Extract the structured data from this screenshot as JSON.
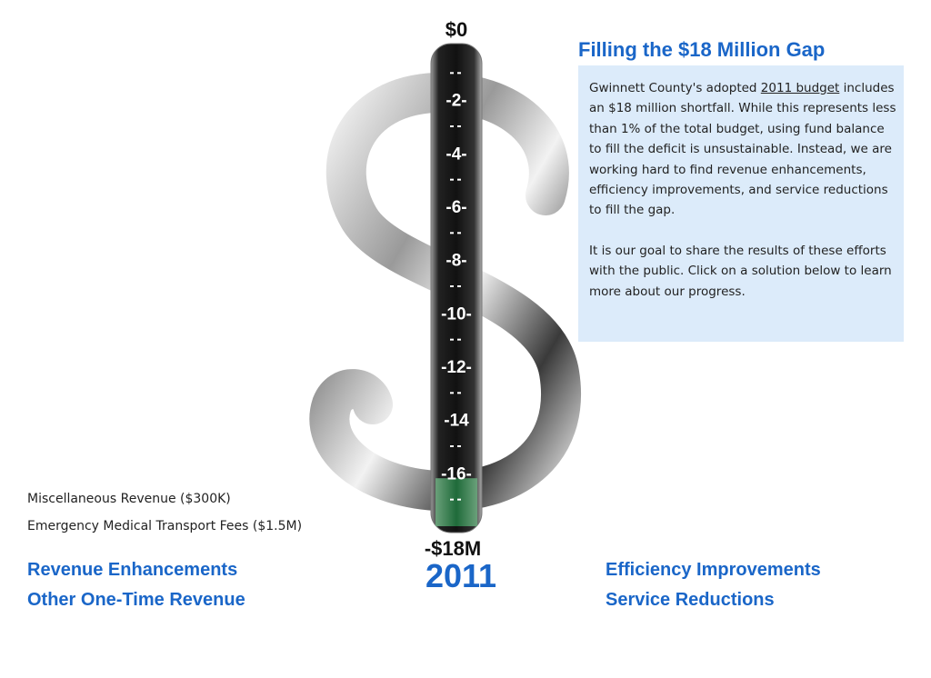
{
  "gauge": {
    "top_label": "$0",
    "bottom_label": "-$18M",
    "year": "2011",
    "range": [
      -18,
      0
    ],
    "ticks": [
      {
        "value": -2,
        "label": "-2-"
      },
      {
        "value": -4,
        "label": "-4-"
      },
      {
        "value": -6,
        "label": "-6-"
      },
      {
        "value": -8,
        "label": "-8-"
      },
      {
        "value": -10,
        "label": "-10-"
      },
      {
        "value": -12,
        "label": "-12-"
      },
      {
        "value": -14,
        "label": "-14"
      },
      {
        "value": -16,
        "label": "-16-"
      }
    ],
    "fill": 1.8
  },
  "panel": {
    "title": "Filling the $18 Million Gap",
    "paragraphs": [
      [
        "Gwinnett County's adopted ",
        "2011 budget",
        " includes an $18 million shortfall. While this represents less than 1% of the total budget, using fund balance to fill the deficit is unsustainable. Instead, we are working hard to find revenue enhancements, efficiency improvements, and service reductions to fill the gap."
      ],
      [
        "It is our goal to share the results of these efforts with the public. Click on a solution below to learn more about our progress."
      ]
    ]
  },
  "items": [
    "Miscellaneous Revenue ($300K)",
    "Emergency Medical Transport Fees ($1.5M)"
  ],
  "links": {
    "left": [
      "Revenue Enhancements",
      "Other One-Time Revenue"
    ],
    "right": [
      "Efficiency Improvements",
      "Service Reductions"
    ]
  }
}
